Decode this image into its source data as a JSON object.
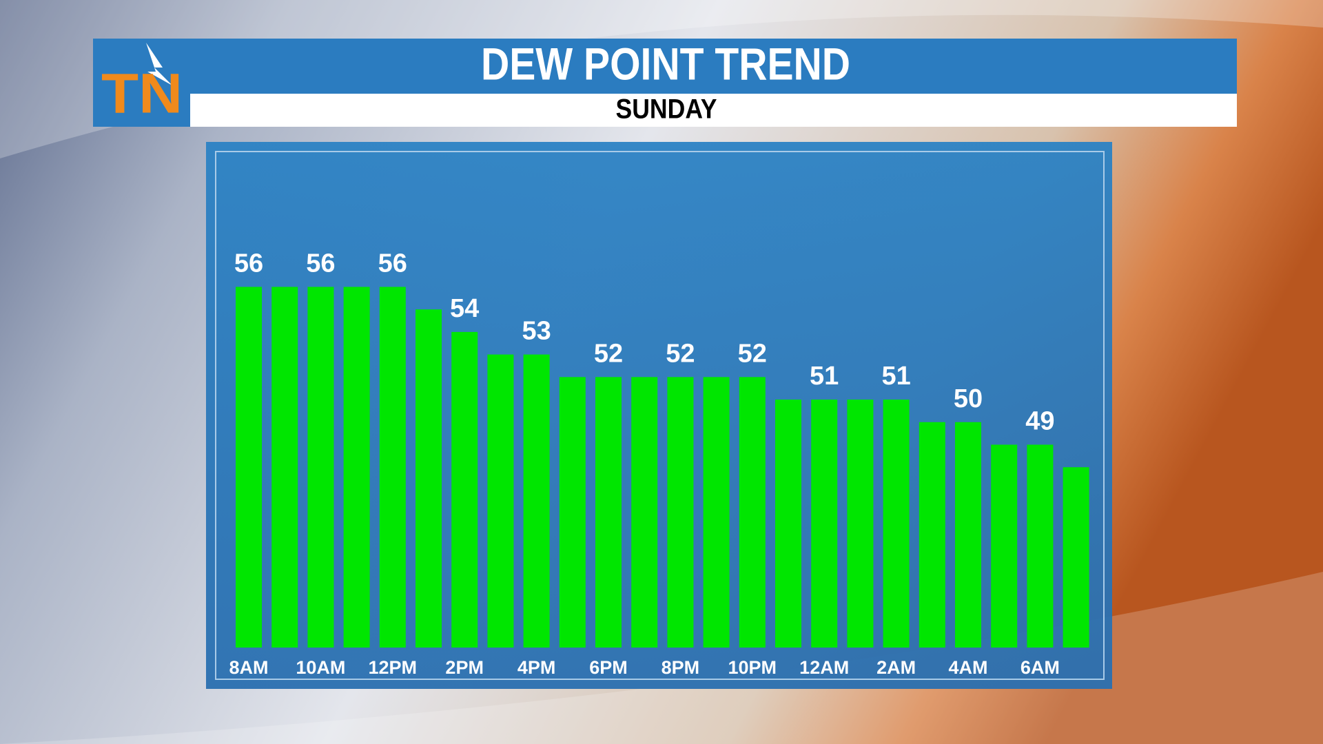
{
  "logo": "TN",
  "chart_data": {
    "type": "bar",
    "title": "DEW POINT TREND",
    "subtitle": "SUNDAY",
    "categories": [
      "8AM",
      null,
      "10AM",
      null,
      "12PM",
      null,
      "2PM",
      null,
      "4PM",
      null,
      "6PM",
      null,
      "8PM",
      null,
      "10PM",
      null,
      "12AM",
      null,
      "2AM",
      null,
      "4AM",
      null,
      "6AM",
      null
    ],
    "values": [
      56,
      56,
      56,
      56,
      56,
      55,
      54,
      53,
      53,
      52,
      52,
      52,
      52,
      52,
      52,
      51,
      51,
      51,
      51,
      50,
      50,
      49,
      49,
      48
    ],
    "color": "#00e600",
    "ylim": [
      40,
      58
    ],
    "label_every": 2
  }
}
